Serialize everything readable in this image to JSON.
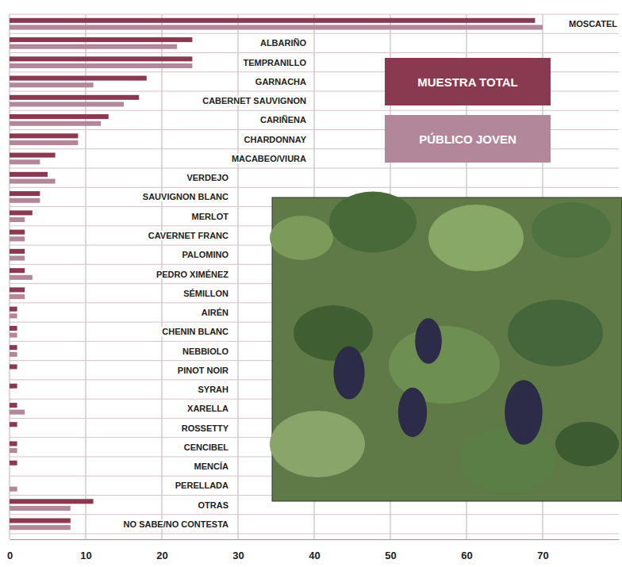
{
  "chart_data": {
    "type": "bar",
    "orientation": "horizontal",
    "categories": [
      "MOSCATEL",
      "ALBARIÑO",
      "TEMPRANILLO",
      "GARNACHA",
      "CABERNET SAUVIGNON",
      "CARIÑENA",
      "CHARDONNAY",
      "MACABEO/VIURA",
      "VERDEJO",
      "SAUVIGNON BLANC",
      "MERLOT",
      "CAVERNET FRANC",
      "PALOMINO",
      "PEDRO XIMÉNEZ",
      "SÉMILLON",
      "AIRÉN",
      "CHENIN BLANC",
      "NEBBIOLO",
      "PINOT NOIR",
      "SYRAH",
      "XARELLA",
      "ROSSETTY",
      "CENCIBEL",
      "MENCÍA",
      "PERELLADA",
      "OTRAS",
      "NO SABE/NO CONTESTA"
    ],
    "series": [
      {
        "name": "MUESTRA TOTAL",
        "color": "#8a3a50",
        "values": [
          69,
          24,
          24,
          18,
          17,
          13,
          9,
          6,
          5,
          4,
          3,
          2,
          2,
          2,
          2,
          1,
          1,
          1,
          1,
          1,
          1,
          1,
          1,
          1,
          0,
          11,
          8
        ]
      },
      {
        "name": "PÚBLICO JOVEN",
        "color": "#b3879a",
        "values": [
          70,
          22,
          24,
          11,
          15,
          12,
          9,
          4,
          6,
          4,
          2,
          2,
          2,
          3,
          2,
          1,
          1,
          1,
          0,
          0,
          2,
          0,
          1,
          0,
          1,
          8,
          8
        ]
      }
    ],
    "xlim": [
      0,
      80
    ],
    "xticks": [
      0,
      10,
      20,
      30,
      40,
      50,
      60,
      70
    ],
    "grid": true,
    "legend": "top-right"
  }
}
